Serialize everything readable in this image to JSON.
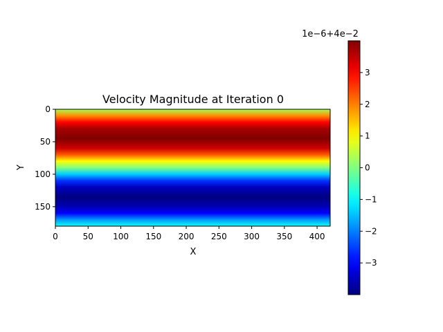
{
  "chart_data": {
    "type": "heatmap",
    "title": "Velocity Magnitude at Iteration 0",
    "xlabel": "X",
    "ylabel": "Y",
    "x_ticks": [
      "0",
      "50",
      "100",
      "150",
      "200",
      "250",
      "300",
      "350",
      "400"
    ],
    "y_ticks": [
      "0",
      "50",
      "100",
      "150"
    ],
    "xlim": [
      0,
      420
    ],
    "ylim": [
      180,
      0
    ],
    "colormap": "jet",
    "field_description_rows": {
      "row_values": [
        {
          "y": 0,
          "v": 0.3
        },
        {
          "y": 10,
          "v": 1.9
        },
        {
          "y": 20,
          "v": 3.0
        },
        {
          "y": 30,
          "v": 3.7
        },
        {
          "y": 45,
          "v": 4.0
        },
        {
          "y": 60,
          "v": 3.4
        },
        {
          "y": 70,
          "v": 2.3
        },
        {
          "y": 80,
          "v": 1.0
        },
        {
          "y": 90,
          "v": 0.0
        },
        {
          "y": 100,
          "v": -1.4
        },
        {
          "y": 110,
          "v": -2.6
        },
        {
          "y": 120,
          "v": -3.5
        },
        {
          "y": 135,
          "v": -4.0
        },
        {
          "y": 150,
          "v": -3.6
        },
        {
          "y": 160,
          "v": -3.0
        },
        {
          "y": 170,
          "v": -1.8
        },
        {
          "y": 180,
          "v": -0.9
        }
      ],
      "unit_note": "value = 4e-2 + v*1e-6"
    },
    "colorbar": {
      "ticks": [
        "−3",
        "−2",
        "−1",
        "0",
        "1",
        "2",
        "3"
      ],
      "tick_values": [
        -3,
        -2,
        -1,
        0,
        1,
        2,
        3
      ],
      "range": [
        -4.0,
        4.0
      ],
      "offset_label": "1e−6+4e−2"
    }
  }
}
